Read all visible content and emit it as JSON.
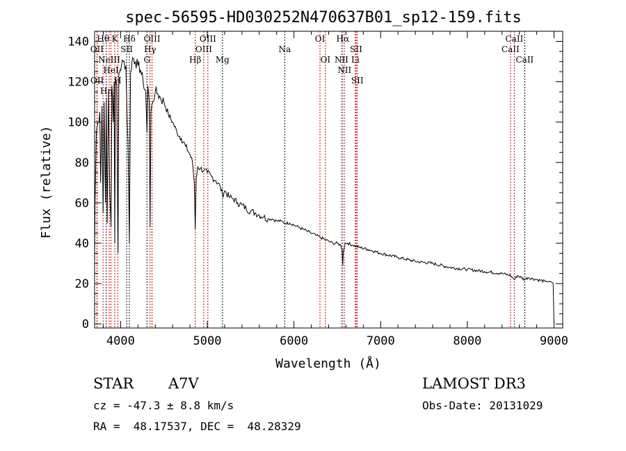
{
  "chart_data": {
    "type": "line",
    "title": "spec-56595-HD030252N470637B01_sp12-159.fits",
    "xlabel": "Wavelength (Å)",
    "ylabel": "Flux (relative)",
    "xlim": [
      3700,
      9100
    ],
    "ylim": [
      -2,
      145
    ],
    "xticks": [
      4000,
      5000,
      6000,
      7000,
      8000,
      9000
    ],
    "yticks": [
      0,
      20,
      40,
      60,
      80,
      100,
      120,
      140
    ],
    "grid": false,
    "series": [
      {
        "name": "flux",
        "x": [
          3700,
          3705,
          3720,
          3740,
          3760,
          3770,
          3785,
          3798,
          3810,
          3825,
          3835,
          3845,
          3860,
          3875,
          3889,
          3900,
          3915,
          3925,
          3933,
          3940,
          3955,
          3962,
          3970,
          3980,
          3995,
          4010,
          4030,
          4060,
          4085,
          4101,
          4115,
          4140,
          4170,
          4200,
          4230,
          4260,
          4290,
          4304,
          4315,
          4330,
          4340,
          4350,
          4370,
          4400,
          4430,
          4460,
          4500,
          4550,
          4600,
          4650,
          4700,
          4750,
          4800,
          4830,
          4850,
          4861,
          4872,
          4890,
          4920,
          4960,
          5000,
          5050,
          5100,
          5150,
          5175,
          5200,
          5250,
          5300,
          5350,
          5400,
          5450,
          5500,
          5550,
          5600,
          5650,
          5700,
          5750,
          5800,
          5850,
          5893,
          5950,
          6000,
          6050,
          6100,
          6150,
          6200,
          6250,
          6300,
          6350,
          6400,
          6450,
          6500,
          6540,
          6555,
          6563,
          6570,
          6590,
          6620,
          6680,
          6750,
          6850,
          7000,
          7200,
          7400,
          7600,
          7800,
          8000,
          8200,
          8400,
          8500,
          8542,
          8580,
          8662,
          8700,
          8800,
          8900,
          8960,
          8990,
          9000
        ],
        "y": [
          30,
          60,
          95,
          100,
          105,
          70,
          108,
          55,
          110,
          60,
          112,
          50,
          115,
          65,
          48,
          118,
          100,
          120,
          40,
          122,
          118,
          70,
          35,
          124,
          126,
          128,
          130,
          128,
          90,
          40,
          125,
          132,
          130,
          128,
          126,
          120,
          115,
          95,
          118,
          110,
          48,
          105,
          110,
          115,
          114,
          112,
          110,
          104,
          100,
          95,
          92,
          88,
          84,
          80,
          70,
          47,
          72,
          78,
          77,
          76,
          75,
          73,
          71,
          68,
          64,
          66,
          63,
          62,
          60,
          59,
          57,
          56,
          55,
          54,
          53,
          52,
          52,
          51,
          51,
          50,
          50,
          49,
          48,
          47,
          46,
          45,
          44,
          43,
          42,
          41,
          40,
          40,
          39,
          37,
          29,
          36,
          40,
          40,
          39,
          38,
          37,
          35,
          33,
          31,
          30,
          28,
          27,
          26,
          25,
          24,
          22,
          24,
          22,
          23,
          22,
          21,
          21,
          20,
          0
        ]
      }
    ],
    "lines": [
      {
        "wl": 3727,
        "label": "OII",
        "row": 2,
        "color": "#cc0000"
      },
      {
        "wl": 3729,
        "label": "OII",
        "row": 3,
        "color": "#cc0000"
      },
      {
        "wl": 3798,
        "label": "Hθ",
        "row": 1,
        "color": "#cc0000"
      },
      {
        "wl": 3835,
        "label": "Hη",
        "row": 3,
        "color": "#000000"
      },
      {
        "wl": 3869,
        "label": "NeIII",
        "row": 2,
        "color": "#cc0000"
      },
      {
        "wl": 3889,
        "label": "HeI",
        "row": 2,
        "color": "#cc0000"
      },
      {
        "wl": 3933,
        "label": "K",
        "row": 1,
        "color": "#cc0000"
      },
      {
        "wl": 3968,
        "label": "H",
        "row": 3,
        "color": "#cc0000"
      },
      {
        "wl": 4070,
        "label": "SII",
        "row": 2,
        "color": "#000000"
      },
      {
        "wl": 4101,
        "label": "Hδ",
        "row": 1,
        "color": "#000000"
      },
      {
        "wl": 4304,
        "label": "G",
        "row": 3,
        "color": "#000000"
      },
      {
        "wl": 4340,
        "label": "Hγ",
        "row": 2,
        "color": "#cc0000"
      },
      {
        "wl": 4363,
        "label": "OIII",
        "row": 1,
        "color": "#cc0000"
      },
      {
        "wl": 4861,
        "label": "Hβ",
        "row": 3,
        "color": "#cc0000"
      },
      {
        "wl": 4959,
        "label": "OIII",
        "row": 2,
        "color": "#cc0000"
      },
      {
        "wl": 5007,
        "label": "OIII",
        "row": 1,
        "color": "#cc0000"
      },
      {
        "wl": 5175,
        "label": "Mg",
        "row": 3,
        "color": "#000000"
      },
      {
        "wl": 5893,
        "label": "Na",
        "row": 2,
        "color": "#000000"
      },
      {
        "wl": 6300,
        "label": "OI",
        "row": 1,
        "color": "#cc0000"
      },
      {
        "wl": 6363,
        "label": "OI",
        "row": 3,
        "color": "#cc0000"
      },
      {
        "wl": 6548,
        "label": "NII",
        "row": 2,
        "color": "#555555"
      },
      {
        "wl": 6563,
        "label": "Hα",
        "row": 1,
        "color": "#cc0000"
      },
      {
        "wl": 6583,
        "label": "NII",
        "row": 3,
        "color": "#555555"
      },
      {
        "wl": 6708,
        "label": "Li",
        "row": 2,
        "color": "#cc0000"
      },
      {
        "wl": 6717,
        "label": "SII",
        "row": 1,
        "color": "#cc0000"
      },
      {
        "wl": 6731,
        "label": "SII",
        "row": 3,
        "color": "#cc0000"
      },
      {
        "wl": 8498,
        "label": "CaII",
        "row": 2,
        "color": "#cc0000"
      },
      {
        "wl": 8542,
        "label": "CaII",
        "row": 1,
        "color": "#cc0000"
      },
      {
        "wl": 8662,
        "label": "CaII",
        "row": 3,
        "color": "#000000"
      }
    ]
  },
  "info": {
    "class": "STAR",
    "subclass": "A7V",
    "survey": "LAMOST DR3",
    "cz": "cz = -47.3 ± 8.8 km/s",
    "obs_date": "Obs-Date: 20131029",
    "radec": "RA =  48.17537, DEC =  48.28329"
  }
}
